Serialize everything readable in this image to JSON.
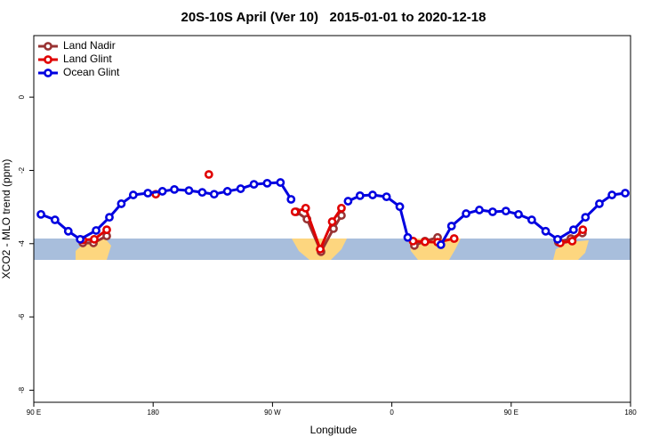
{
  "chart_data": {
    "type": "line",
    "title": "20S-10S April (Ver 10)   2015-01-01 to 2020-12-18",
    "x_label": "Longitude",
    "y_label": "XCO2 - MLO trend (ppm)",
    "xlim": [
      90,
      540
    ],
    "ylim": [
      -8.33,
      1.68
    ],
    "xticks": [
      {
        "value": 90,
        "label": "90 E"
      },
      180,
      {
        "value": 270,
        "label": "90 W"
      },
      {
        "value": 360,
        "label": "0"
      },
      {
        "value": 450,
        "label": "90 E"
      },
      {
        "value": 540,
        "label": "180"
      }
    ],
    "yticks": [
      0,
      -2,
      -4,
      -6,
      -8
    ],
    "legend": "top-left",
    "series": [
      {
        "name": "Land Nadir",
        "color": "#993333",
        "x": [
          127,
          135,
          145,
          200,
          288,
          296,
          306.6,
          316,
          322,
          350,
          377,
          385,
          394.5,
          450,
          485.6,
          495,
          503.7
        ],
        "values": [
          -3.98,
          -3.98,
          -3.79,
          null,
          -3.13,
          -3.33,
          -4.22,
          -3.59,
          -3.23,
          null,
          -4.05,
          -3.93,
          -3.83,
          null,
          -3.96,
          -3.86,
          -3.71
        ]
      },
      {
        "name": "Land Glint",
        "color": "#e00000",
        "x": [
          127,
          135.6,
          145,
          160,
          182,
          200,
          222,
          260,
          287,
          295,
          306,
          315,
          322,
          350,
          376,
          385,
          394.5,
          407,
          450,
          487,
          496,
          504
        ],
        "values": [
          -3.9,
          -3.88,
          -3.62,
          null,
          -2.65,
          null,
          -2.11,
          null,
          -3.13,
          -3.03,
          -4.15,
          -3.4,
          -3.03,
          null,
          -3.93,
          -3.95,
          -3.96,
          -3.86,
          null,
          -3.98,
          -3.93,
          -3.62
        ]
      },
      {
        "name": "Ocean Glint",
        "color": "#0000e0",
        "x": [
          95.4,
          106,
          116,
          125,
          137,
          147,
          156,
          165,
          176,
          187,
          196,
          207,
          217,
          226,
          236,
          246,
          256,
          266,
          276,
          284,
          305,
          327,
          336,
          345.5,
          356,
          366,
          372,
          385,
          397,
          405,
          416,
          426,
          436,
          446,
          455.5,
          465.5,
          476,
          485,
          497,
          506,
          516.5,
          526,
          536
        ],
        "values": [
          -3.2,
          -3.35,
          -3.66,
          -3.88,
          -3.64,
          -3.28,
          -2.91,
          -2.67,
          -2.62,
          -2.57,
          -2.52,
          -2.55,
          -2.6,
          -2.65,
          -2.57,
          -2.5,
          -2.38,
          -2.35,
          -2.33,
          -2.79,
          null,
          -2.84,
          -2.69,
          -2.67,
          -2.72,
          -2.99,
          -3.83,
          null,
          -4.03,
          -3.52,
          -3.18,
          -3.08,
          -3.13,
          -3.11,
          -3.2,
          -3.35,
          -3.66,
          -3.88,
          -3.62,
          -3.28,
          -2.91,
          -2.67,
          -2.62
        ]
      }
    ]
  }
}
